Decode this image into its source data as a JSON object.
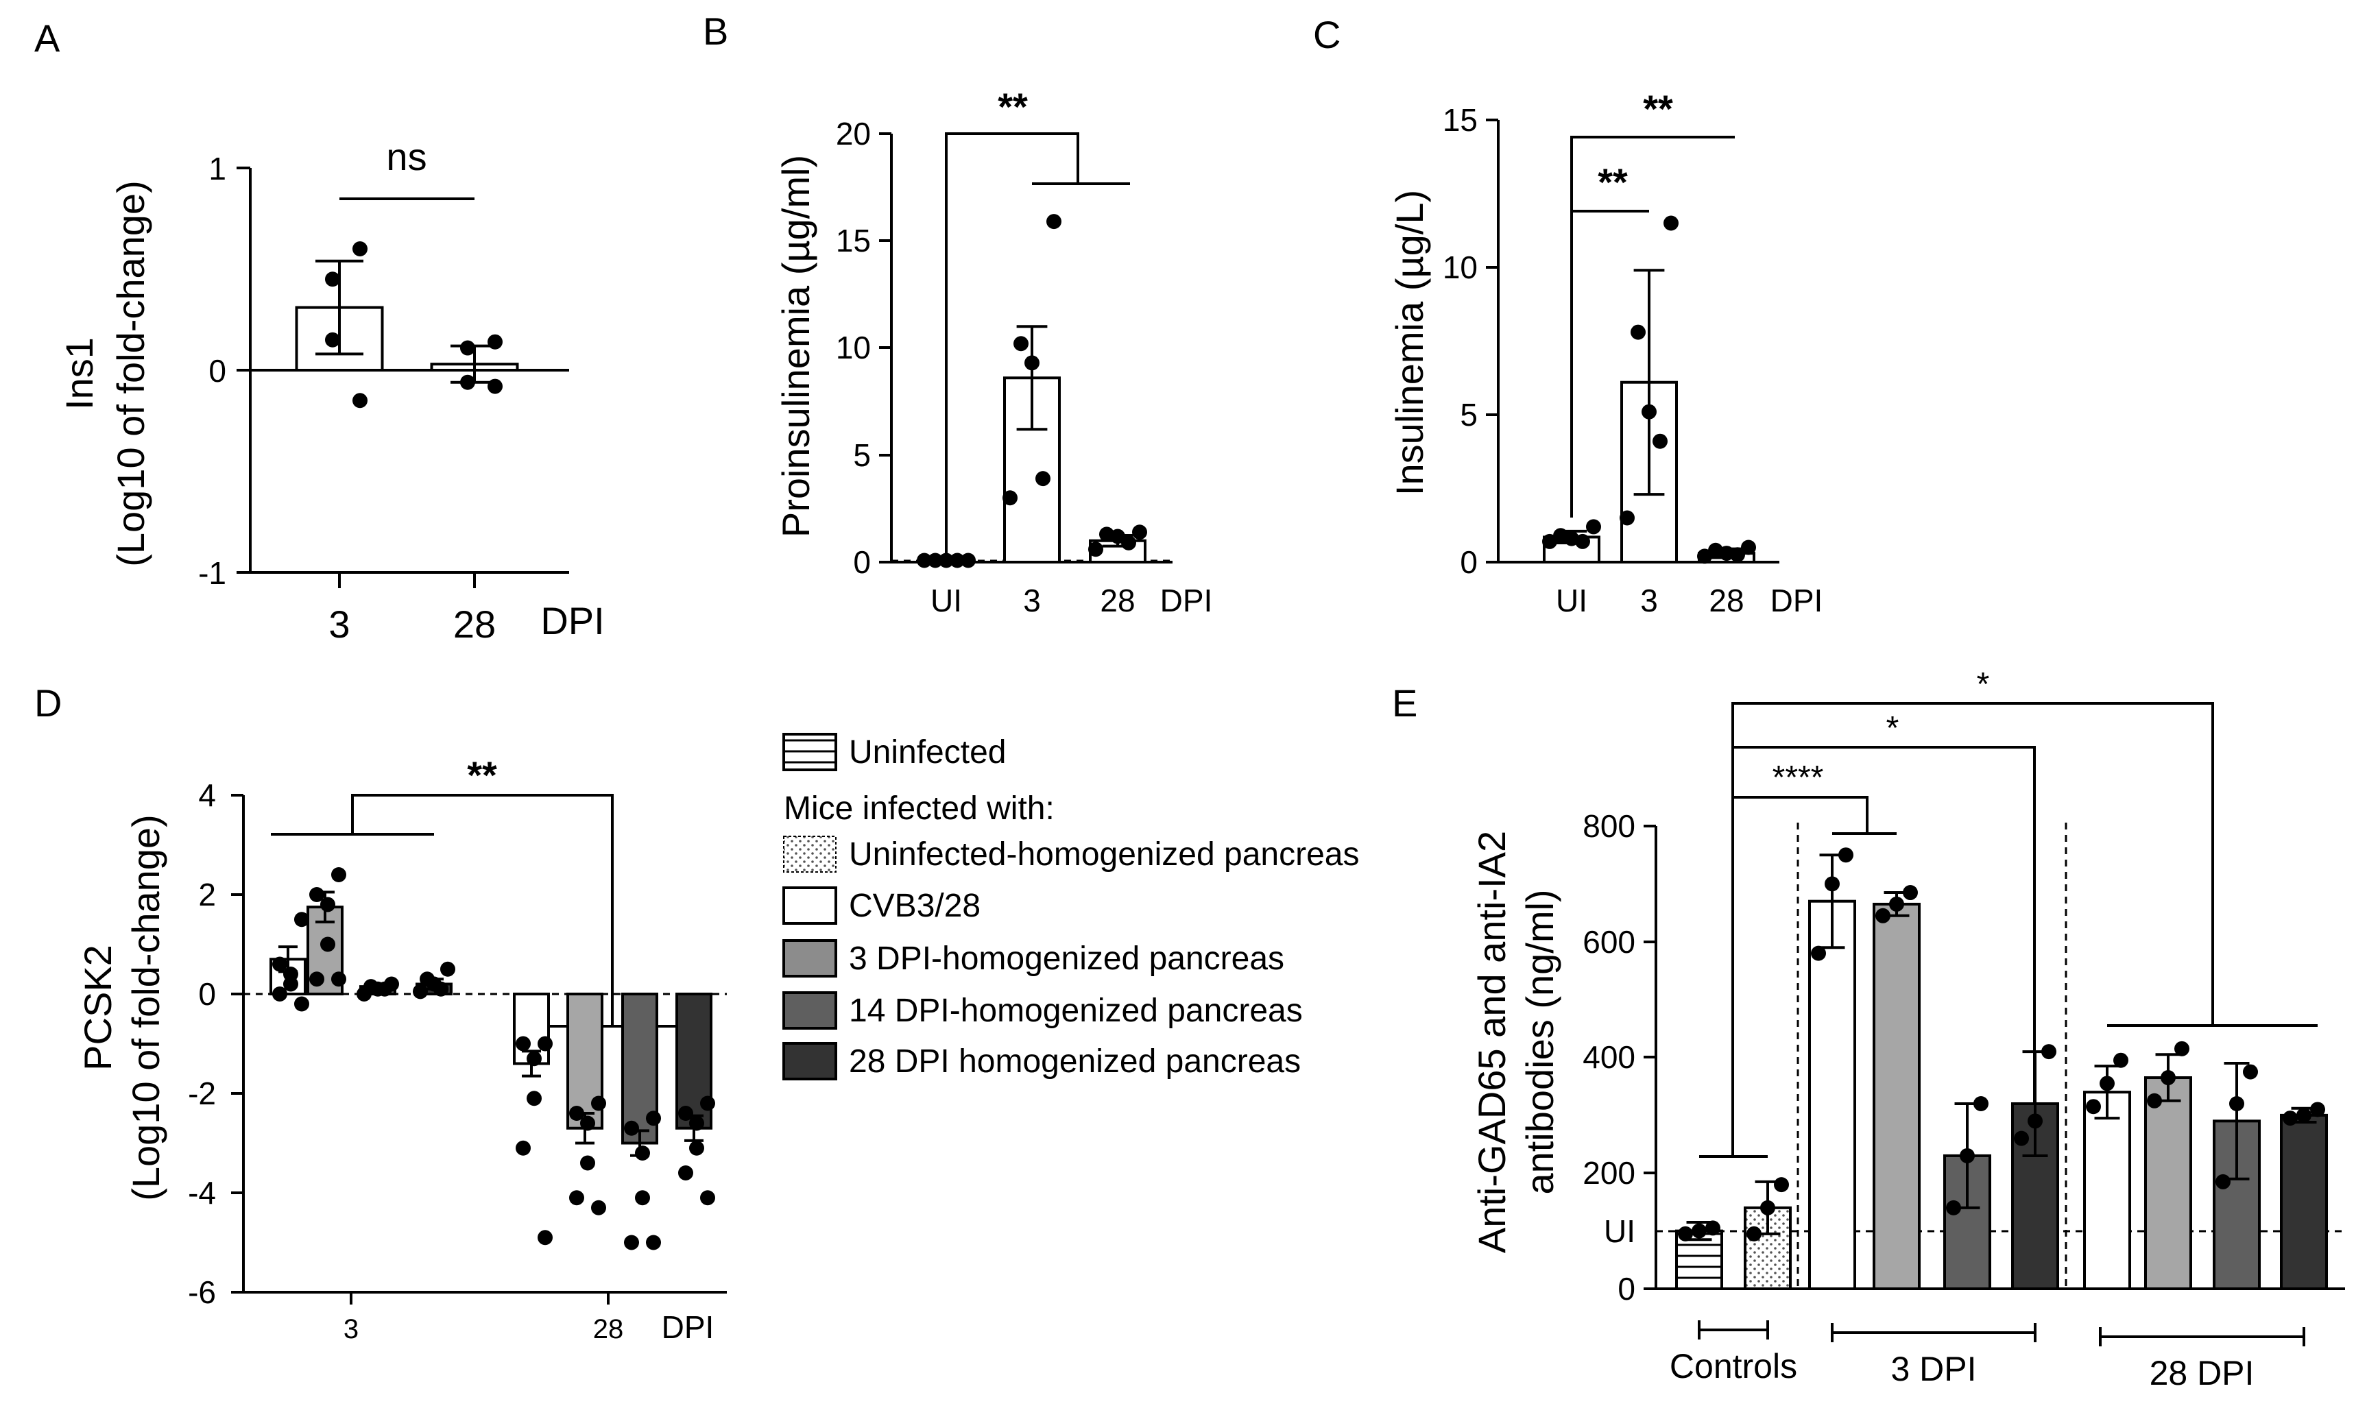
{
  "colors": {
    "white": "#ffffff",
    "light_gray": "#a6a6a6",
    "gray": "#8c8c8c",
    "dark_gray": "#5f5f5f",
    "black_bar": "#333333"
  },
  "chart_data": [
    {
      "panel": "A",
      "type": "bar",
      "ylabel": "Ins1",
      "ylabel2": "(Log10 of fold-change)",
      "ylim": [
        -1,
        1
      ],
      "yticks": [
        "1",
        "0",
        "-1"
      ],
      "categories": [
        "3",
        "28"
      ],
      "xunit": "DPI",
      "values": [
        0.31,
        0.03
      ],
      "errors": [
        0.23,
        0.09
      ],
      "points": [
        [
          0.6,
          0.45,
          0.15,
          -0.15
        ],
        [
          0.14,
          0.11,
          -0.06,
          -0.08
        ]
      ],
      "significance": [
        {
          "label": "ns"
        }
      ]
    },
    {
      "panel": "B",
      "type": "bar",
      "ylabel": "Proinsulinemia (µg/ml)",
      "ylim": [
        0,
        20
      ],
      "yticks": [
        "0",
        "5",
        "10",
        "15",
        "20"
      ],
      "categories": [
        "UI",
        "3",
        "28"
      ],
      "xunit": "DPI",
      "values": [
        0.05,
        8.6,
        1.0
      ],
      "errors": [
        0.05,
        2.4,
        0.25
      ],
      "points": [
        [
          0.08,
          0.08,
          0.08,
          0.08,
          0.08
        ],
        [
          15.9,
          10.2,
          9.3,
          3.9,
          3.0
        ],
        [
          1.4,
          1.3,
          1.2,
          0.9,
          0.6
        ]
      ],
      "significance": [
        {
          "label": "**"
        }
      ]
    },
    {
      "panel": "C",
      "type": "bar",
      "ylabel": "Insulinemia (µg/L)",
      "ylim": [
        0,
        15
      ],
      "yticks": [
        "0",
        "5",
        "10",
        "15"
      ],
      "categories": [
        "UI",
        "3",
        "28"
      ],
      "xunit": "DPI",
      "values": [
        0.85,
        6.1,
        0.3
      ],
      "errors": [
        0.2,
        3.8,
        0.15
      ],
      "points": [
        [
          1.2,
          0.9,
          0.8,
          0.7,
          0.7
        ],
        [
          11.5,
          7.8,
          5.1,
          4.1,
          1.5
        ],
        [
          0.5,
          0.4,
          0.3,
          0.25,
          0.2
        ]
      ],
      "significance": [
        {
          "label": "**"
        },
        {
          "label": "**"
        }
      ]
    },
    {
      "panel": "D",
      "type": "bar",
      "ylabel": "PCSK2",
      "ylabel2": "(Log10 of fold-change)",
      "ylim": [
        -6,
        4
      ],
      "yticks": [
        "4",
        "2",
        "0",
        "-2",
        "-4",
        "-6"
      ],
      "categories": [
        "3",
        "28"
      ],
      "xunit": "DPI",
      "series": [
        {
          "name": "CVB3/28",
          "values": [
            0.7,
            -1.4
          ],
          "errors": [
            0.25,
            0.25
          ],
          "points": [
            [
              1.5,
              0.6,
              0.4,
              0.2,
              0.0,
              -0.2
            ],
            [
              -1.0,
              -1.0,
              -1.3,
              -2.1,
              -3.1,
              -4.9
            ]
          ]
        },
        {
          "name": "3 DPI-homogenized pancreas",
          "values": [
            1.75,
            -2.7
          ],
          "errors": [
            0.3,
            0.3
          ],
          "points": [
            [
              2.4,
              2.0,
              1.8,
              1.0,
              0.3,
              0.3
            ],
            [
              -2.2,
              -2.4,
              -2.6,
              -3.4,
              -4.1,
              -4.3
            ]
          ]
        },
        {
          "name": "14 DPI-homogenized pancreas",
          "values": [
            0.15,
            -3.0
          ],
          "errors": [
            0.05,
            0.25
          ],
          "points": [
            [
              0.2,
              0.15,
              0.1,
              0.1,
              0.0
            ],
            [
              -2.5,
              -2.7,
              -3.2,
              -4.1,
              -5.0,
              -5.0
            ]
          ]
        },
        {
          "name": "28 DPI homogenized pancreas",
          "values": [
            0.2,
            -2.7
          ],
          "errors": [
            0.1,
            0.25
          ],
          "points": [
            [
              0.5,
              0.3,
              0.2,
              0.1,
              0.05
            ],
            [
              -2.2,
              -2.4,
              -2.6,
              -3.1,
              -3.6,
              -4.1
            ]
          ]
        }
      ],
      "significance": [
        {
          "label": "**"
        }
      ]
    },
    {
      "panel": "E",
      "type": "bar",
      "ylabel": "Anti-GAD65 and anti-IA2",
      "ylabel2": "antibodies (ng/ml)",
      "ylim": [
        0,
        800
      ],
      "yticks": [
        "0",
        "200",
        "400",
        "600",
        "800"
      ],
      "ui_label": "UI",
      "ui_level": 100,
      "groups": [
        "Controls",
        "3 DPI",
        "28 DPI"
      ],
      "bars": [
        {
          "group": "Controls",
          "series": "Uninfected",
          "value": 100,
          "error": 15,
          "points": [
            105,
            100,
            95
          ]
        },
        {
          "group": "Controls",
          "series": "Uninfected-homogenized pancreas",
          "value": 140,
          "error": 45,
          "points": [
            180,
            140,
            95
          ]
        },
        {
          "group": "3 DPI",
          "series": "CVB3/28",
          "value": 670,
          "error": 80,
          "points": [
            750,
            700,
            580
          ]
        },
        {
          "group": "3 DPI",
          "series": "3 DPI-homogenized pancreas",
          "value": 665,
          "error": 20,
          "points": [
            685,
            665,
            645
          ]
        },
        {
          "group": "3 DPI",
          "series": "14 DPI-homogenized pancreas",
          "value": 230,
          "error": 90,
          "points": [
            320,
            230,
            140
          ]
        },
        {
          "group": "3 DPI",
          "series": "28 DPI homogenized pancreas",
          "value": 320,
          "error": 90,
          "points": [
            410,
            290,
            260
          ]
        },
        {
          "group": "28 DPI",
          "series": "CVB3/28",
          "value": 340,
          "error": 45,
          "points": [
            395,
            355,
            315
          ]
        },
        {
          "group": "28 DPI",
          "series": "3 DPI-homogenized pancreas",
          "value": 365,
          "error": 40,
          "points": [
            415,
            365,
            325
          ]
        },
        {
          "group": "28 DPI",
          "series": "14 DPI-homogenized pancreas",
          "value": 290,
          "error": 100,
          "points": [
            375,
            320,
            185
          ]
        },
        {
          "group": "28 DPI",
          "series": "28 DPI homogenized pancreas",
          "value": 300,
          "error": 12,
          "points": [
            310,
            300,
            295
          ]
        }
      ],
      "significance": [
        {
          "label": "*"
        },
        {
          "label": "*"
        },
        {
          "label": "****"
        }
      ]
    }
  ],
  "legend": {
    "header": "Mice infected with:",
    "entries": [
      {
        "label": "Uninfected",
        "pattern": "stripes"
      },
      {
        "label": "Uninfected-homogenized pancreas",
        "pattern": "dots"
      },
      {
        "label": "CVB3/28",
        "color": "#ffffff"
      },
      {
        "label": "3 DPI-homogenized pancreas",
        "color": "#8c8c8c"
      },
      {
        "label": "14 DPI-homogenized pancreas",
        "color": "#5f5f5f"
      },
      {
        "label": "28 DPI homogenized pancreas",
        "color": "#333333"
      }
    ]
  }
}
